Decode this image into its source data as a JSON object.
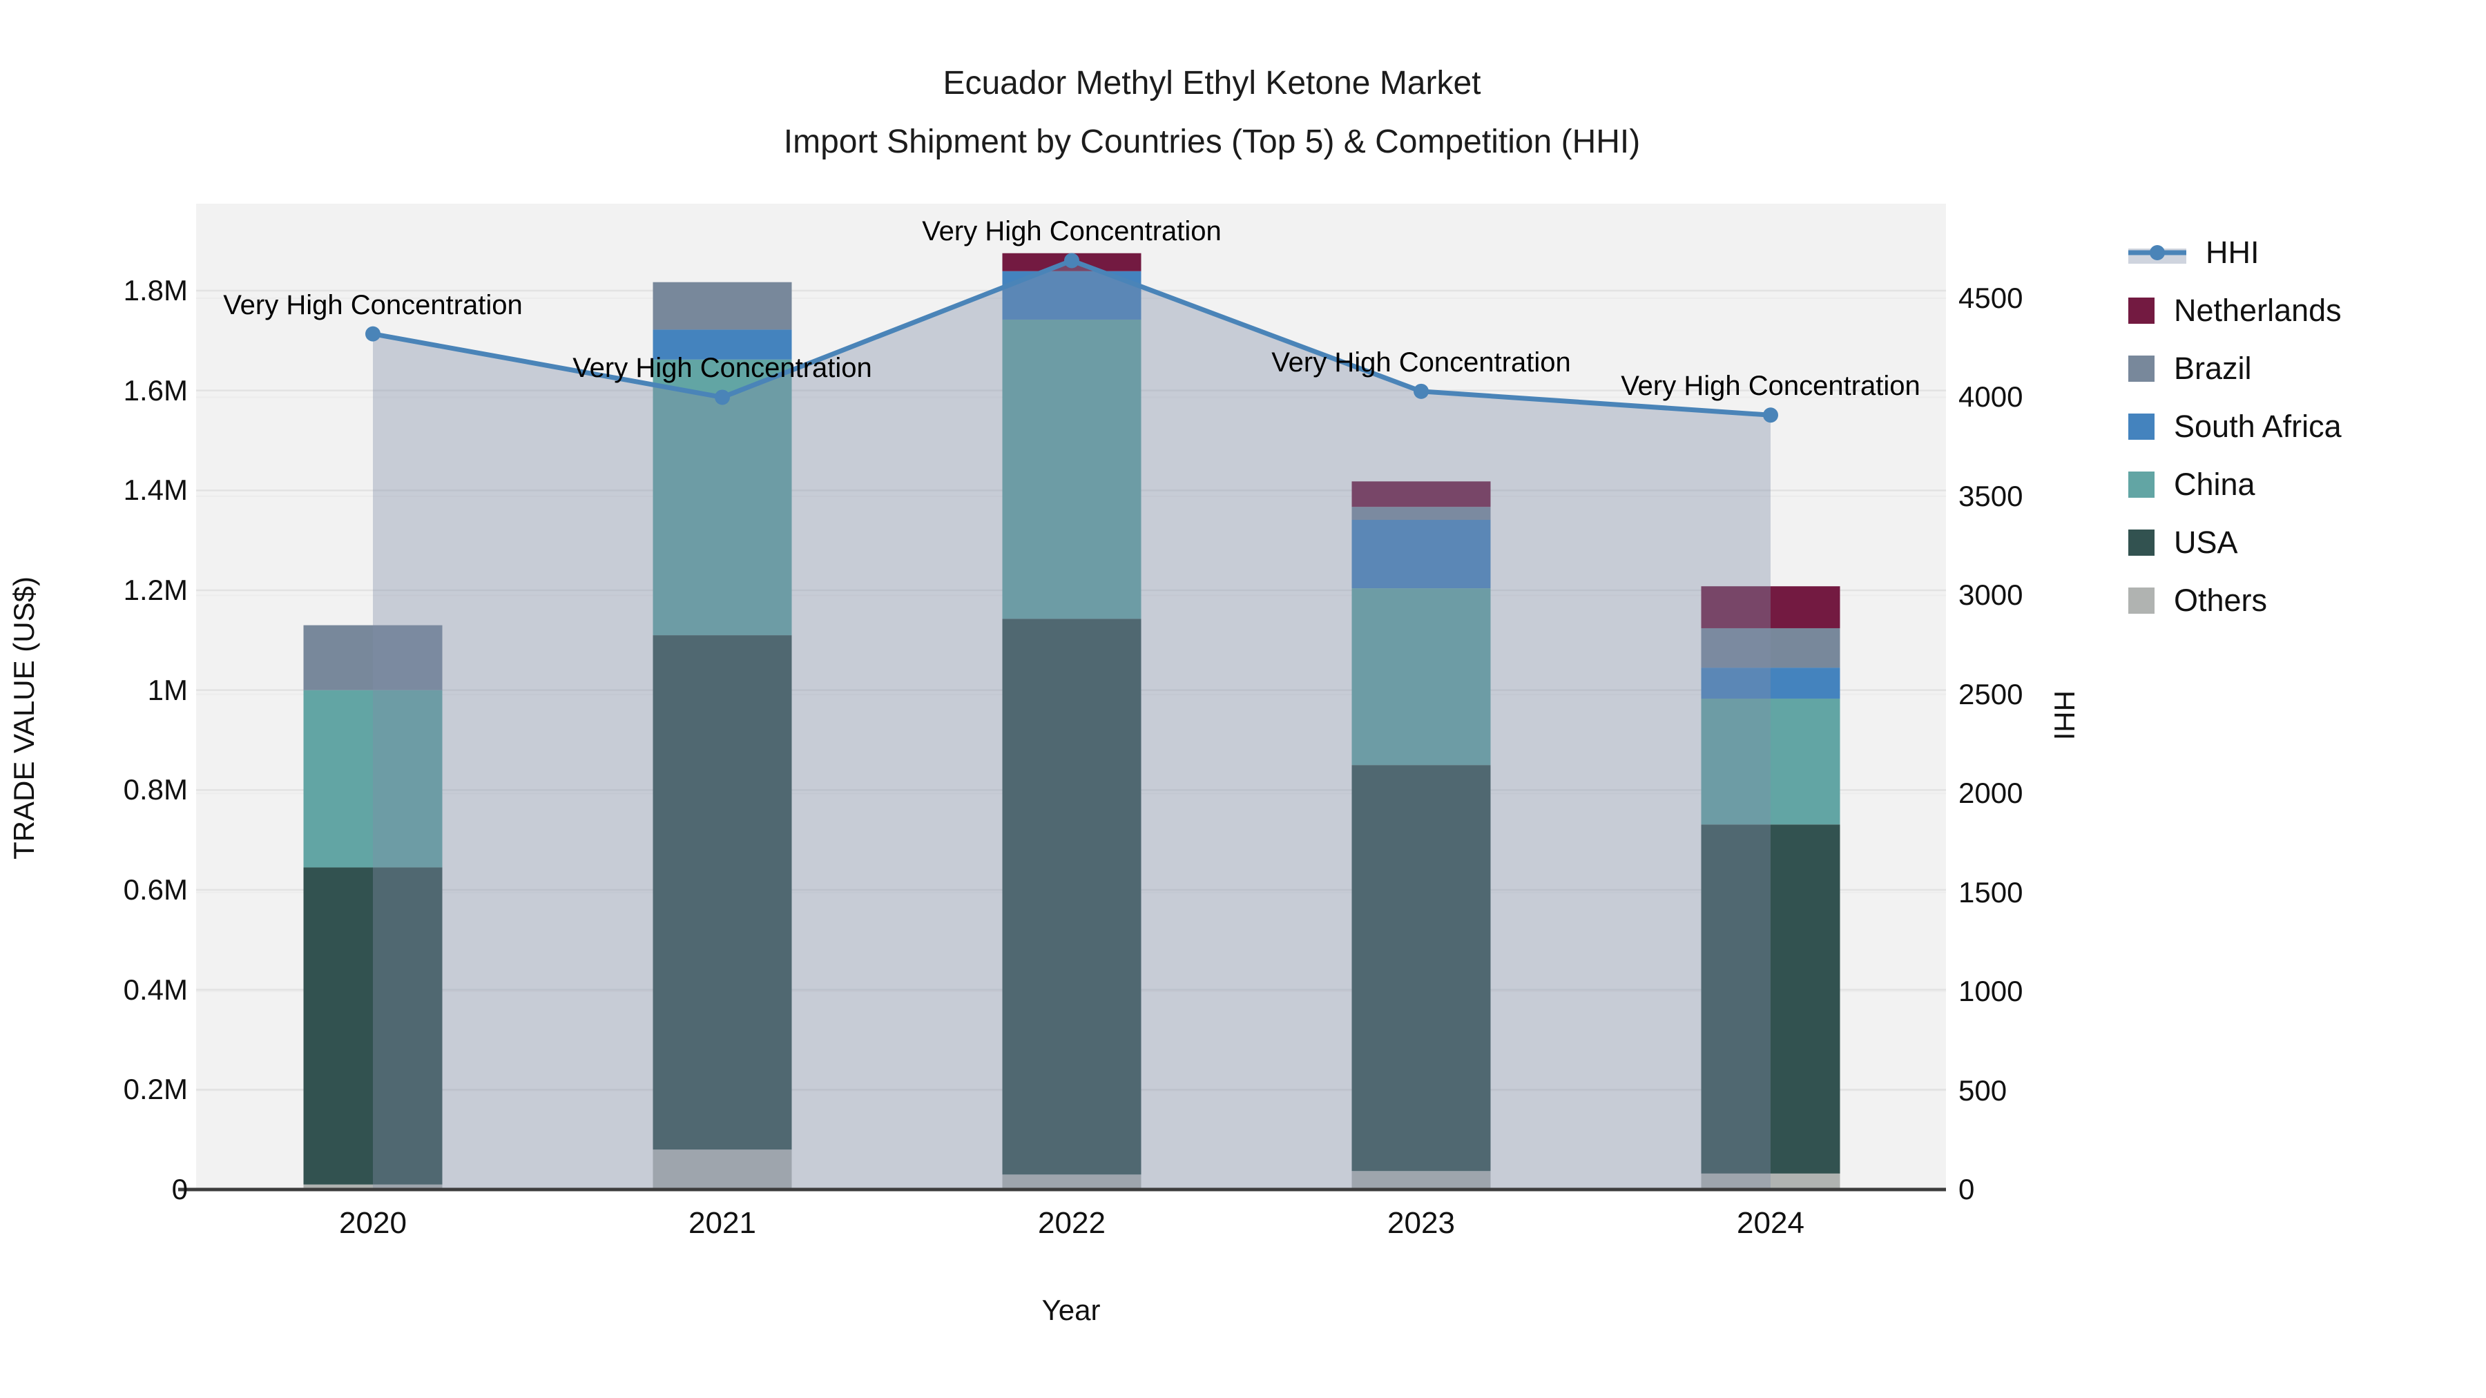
{
  "title": {
    "line1": "Ecuador Methyl Ethyl Ketone Market",
    "line2": "Import Shipment by Countries (Top 5) & Competition (HHI)"
  },
  "axes": {
    "x_title": "Year",
    "y_left_title": "TRADE VALUE (US$)",
    "y_right_title": "HHI",
    "y_left_ticks": [
      {
        "label": "0",
        "value": 0
      },
      {
        "label": "0.2M",
        "value": 200000
      },
      {
        "label": "0.4M",
        "value": 400000
      },
      {
        "label": "0.6M",
        "value": 600000
      },
      {
        "label": "0.8M",
        "value": 800000
      },
      {
        "label": "1M",
        "value": 1000000
      },
      {
        "label": "1.2M",
        "value": 1200000
      },
      {
        "label": "1.4M",
        "value": 1400000
      },
      {
        "label": "1.6M",
        "value": 1600000
      },
      {
        "label": "1.8M",
        "value": 1800000
      }
    ],
    "y_right_ticks": [
      {
        "label": "0",
        "value": 0
      },
      {
        "label": "500",
        "value": 500
      },
      {
        "label": "1000",
        "value": 1000
      },
      {
        "label": "1500",
        "value": 1500
      },
      {
        "label": "2000",
        "value": 2000
      },
      {
        "label": "2500",
        "value": 2500
      },
      {
        "label": "3000",
        "value": 3000
      },
      {
        "label": "3500",
        "value": 3500
      },
      {
        "label": "4000",
        "value": 4000
      },
      {
        "label": "4500",
        "value": 4500
      }
    ]
  },
  "colors": {
    "plot_bg": "#f2f2f2",
    "grid_left": "#e2e2e2",
    "grid_right": "#ececec",
    "axis_line": "#3d3d3d",
    "hhi_line": "#4a84b8",
    "hhi_fill": "rgba(130,142,168,0.38)",
    "hhi_legend_band": "#cfd4de"
  },
  "legend": [
    {
      "name": "HHI",
      "type": "line",
      "color": "#4a84b8"
    },
    {
      "name": "Netherlands",
      "type": "swatch",
      "color": "#731a41"
    },
    {
      "name": "Brazil",
      "type": "swatch",
      "color": "#78889b"
    },
    {
      "name": "South Africa",
      "type": "swatch",
      "color": "#4483be"
    },
    {
      "name": "China",
      "type": "swatch",
      "color": "#62a5a4"
    },
    {
      "name": "USA",
      "type": "swatch",
      "color": "#325250"
    },
    {
      "name": "Others",
      "type": "swatch",
      "color": "#b0b3b1"
    }
  ],
  "annotation_text": "Very High Concentration",
  "chart_data": {
    "type": "bar",
    "subtype": "stacked-bar-with-line",
    "title": "Ecuador Methyl Ethyl Ketone Market — Import Shipment by Countries (Top 5) & Competition (HHI)",
    "xlabel": "Year",
    "ylabel_left": "TRADE VALUE (US$)",
    "ylabel_right": "HHI",
    "categories": [
      "2020",
      "2021",
      "2022",
      "2023",
      "2024"
    ],
    "series": [
      {
        "name": "Others",
        "color": "#b0b3b1",
        "values": [
          10000,
          80000,
          30000,
          37000,
          32000
        ]
      },
      {
        "name": "USA",
        "color": "#325250",
        "values": [
          635000,
          1030000,
          1113000,
          813000,
          699000
        ]
      },
      {
        "name": "China",
        "color": "#62a5a4",
        "values": [
          355000,
          552000,
          599000,
          354000,
          252000
        ]
      },
      {
        "name": "South Africa",
        "color": "#4483be",
        "values": [
          0,
          60000,
          97000,
          137000,
          62000
        ]
      },
      {
        "name": "Brazil",
        "color": "#78889b",
        "values": [
          130000,
          95000,
          0,
          26000,
          79000
        ]
      },
      {
        "name": "Netherlands",
        "color": "#731a41",
        "values": [
          0,
          0,
          36000,
          51000,
          84000
        ]
      }
    ],
    "bar_totals": [
      1130000,
      1817000,
      1875000,
      1418000,
      1208000
    ],
    "line_series": {
      "name": "HHI",
      "color": "#4a84b8",
      "area_fill": "rgba(130,142,168,0.38)",
      "values": [
        4320,
        4000,
        4690,
        4030,
        3910
      ]
    },
    "annotations": [
      "Very High Concentration",
      "Very High Concentration",
      "Very High Concentration",
      "Very High Concentration",
      "Very High Concentration"
    ],
    "y_left_range": [
      0,
      1975000
    ],
    "y_right_range": [
      0,
      4975
    ],
    "grid": true,
    "legend_position": "right"
  }
}
